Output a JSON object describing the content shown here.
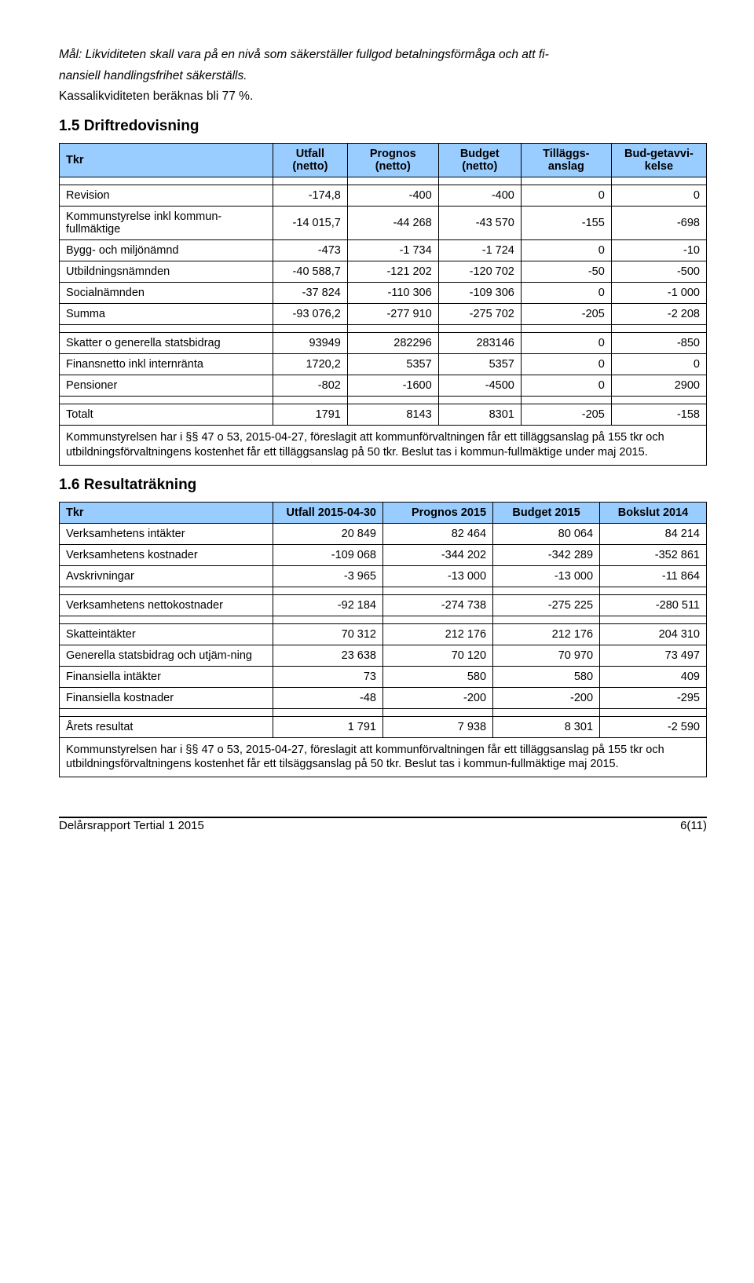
{
  "intro": {
    "goal_line1": "Mål: Likviditeten skall vara på en nivå som säkerställer fullgod betalningsförmåga och att fi-",
    "goal_line2": "nansiell handlingsfrihet säkerställs.",
    "kassa": "Kassalikviditeten beräknas bli 77 %."
  },
  "section1": {
    "heading": "1.5  Driftredovisning",
    "headers": {
      "tkr": "Tkr",
      "utfall": "Utfall (netto)",
      "prognos": "Prognos (netto)",
      "budget": "Budget (netto)",
      "tillagg": "Tilläggs-anslag",
      "budav": "Bud-getavvi-kelse"
    },
    "rows": [
      {
        "label": "Revision",
        "v": [
          "-174,8",
          "-400",
          "-400",
          "0",
          "0"
        ]
      },
      {
        "label": "Kommunstyrelse inkl kommun-fullmäktige",
        "v": [
          "-14 015,7",
          "-44 268",
          "-43 570",
          "-155",
          "-698"
        ]
      },
      {
        "label": "Bygg- och miljönämnd",
        "v": [
          "-473",
          "-1 734",
          "-1 724",
          "0",
          "-10"
        ]
      },
      {
        "label": "Utbildningsnämnden",
        "v": [
          "-40 588,7",
          "-121 202",
          "-120 702",
          "-50",
          "-500"
        ]
      },
      {
        "label": "Socialnämnden",
        "v": [
          "-37 824",
          "-110 306",
          "-109 306",
          "0",
          "-1 000"
        ]
      },
      {
        "label": "Summa",
        "v": [
          "-93 076,2",
          "-277 910",
          "-275 702",
          "-205",
          "-2 208"
        ]
      }
    ],
    "rows2": [
      {
        "label": "Skatter o generella statsbidrag",
        "v": [
          "93949",
          "282296",
          "283146",
          "0",
          "-850"
        ]
      },
      {
        "label": "Finansnetto inkl internränta",
        "v": [
          "1720,2",
          "5357",
          "5357",
          "0",
          "0"
        ]
      },
      {
        "label": "Pensioner",
        "v": [
          "-802",
          "-1600",
          "-4500",
          "0",
          "2900"
        ]
      }
    ],
    "total": {
      "label": "Totalt",
      "v": [
        "1791",
        "8143",
        "8301",
        "-205",
        "-158"
      ]
    },
    "footnote": "Kommunstyrelsen har i §§ 47 o 53, 2015-04-27, föreslagit att kommunförvaltningen får ett tilläggsanslag på 155 tkr och utbildningsförvaltningens kostenhet får ett tilläggsanslag på 50 tkr. Beslut tas i kommun-fullmäktige under maj 2015."
  },
  "section2": {
    "heading": "1.6  Resultaträkning",
    "headers": {
      "tkr": "Tkr",
      "utfall": "Utfall 2015-04-30",
      "prognos": "Prognos 2015",
      "budget": "Budget 2015",
      "bokslut": "Bokslut 2014"
    },
    "rows1": [
      {
        "label": "Verksamhetens intäkter",
        "v": [
          "20 849",
          "82 464",
          "80 064",
          "84 214"
        ]
      },
      {
        "label": "Verksamhetens kostnader",
        "v": [
          "-109 068",
          "-344 202",
          "-342 289",
          "-352 861"
        ]
      },
      {
        "label": "Avskrivningar",
        "v": [
          "-3 965",
          "-13 000",
          "-13 000",
          "-11 864"
        ]
      }
    ],
    "netto": {
      "label": "Verksamhetens nettokostnader",
      "v": [
        "-92 184",
        "-274 738",
        "-275 225",
        "-280 511"
      ]
    },
    "rows2": [
      {
        "label": "Skatteintäkter",
        "v": [
          "70 312",
          "212 176",
          "212 176",
          "204 310"
        ]
      },
      {
        "label": "Generella statsbidrag och utjäm-ning",
        "v": [
          "23 638",
          "70 120",
          "70 970",
          "73 497"
        ]
      },
      {
        "label": "Finansiella intäkter",
        "v": [
          "73",
          "580",
          "580",
          "409"
        ]
      },
      {
        "label": "Finansiella kostnader",
        "v": [
          "-48",
          "-200",
          "-200",
          "-295"
        ]
      }
    ],
    "resultat": {
      "label": "Årets resultat",
      "v": [
        "1 791",
        "7 938",
        "8 301",
        "-2 590"
      ]
    },
    "footnote": "Kommunstyrelsen har i §§ 47 o 53, 2015-04-27, föreslagit att kommunförvaltningen får ett tilläggsanslag på 155 tkr och utbildningsförvaltningens kostenhet får ett tilsäggsanslag på 50 tkr. Beslut tas i kommun-fullmäktige maj 2015."
  },
  "footer": {
    "left": "Delårsrapport Tertial 1 2015",
    "right": "6(11)"
  }
}
